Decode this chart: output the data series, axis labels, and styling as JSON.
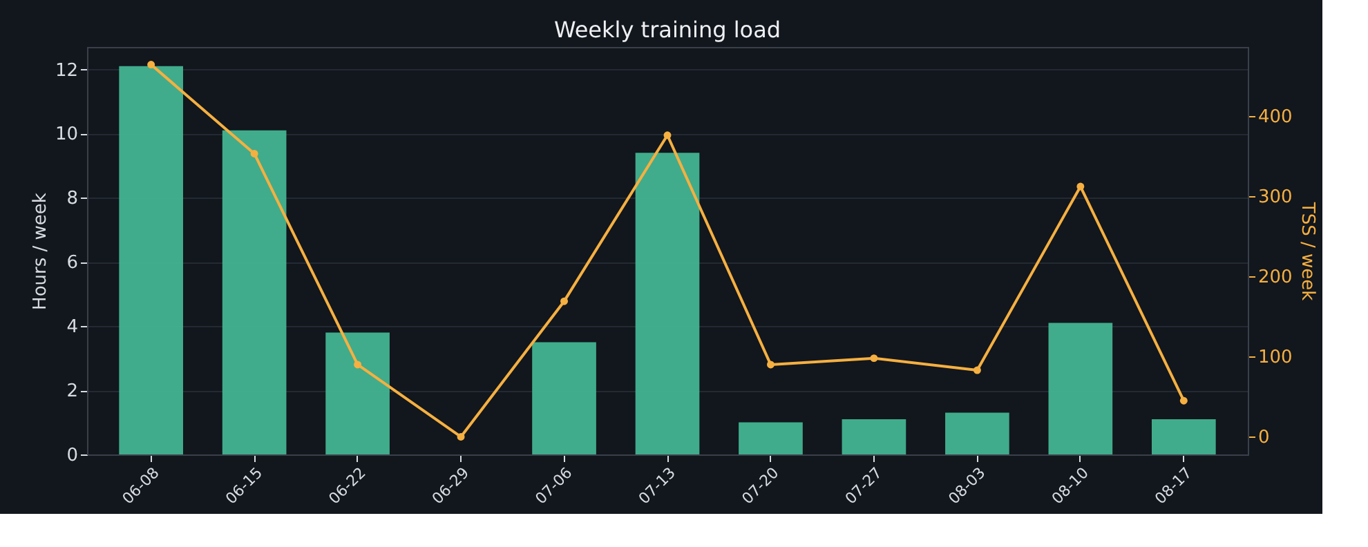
{
  "chart_data": {
    "type": "bar",
    "title": "Weekly training load",
    "ylabel": "Hours / week",
    "y2label": "TSS / week",
    "categories": [
      "06-08",
      "06-15",
      "06-22",
      "06-29",
      "07-06",
      "07-13",
      "07-20",
      "07-27",
      "08-03",
      "08-10",
      "08-17"
    ],
    "series": [
      {
        "color": "#43b491",
        "values": [
          12.1,
          10.1,
          3.8,
          0,
          3.5,
          9.4,
          1.0,
          1.1,
          1.3,
          4.1,
          1.1
        ]
      },
      {
        "type": "line",
        "axis": "y2",
        "color": "#f5b041",
        "marker": "circle",
        "values": [
          464,
          353,
          90,
          0,
          169,
          376,
          90,
          98,
          83,
          312,
          45
        ]
      }
    ],
    "ylim": [
      0,
      12.7
    ],
    "yticks": [
      0,
      2,
      4,
      6,
      8,
      10,
      12
    ],
    "y2lim": [
      -22,
      486
    ],
    "y2ticks": [
      0,
      100,
      200,
      300,
      400
    ],
    "grid": "y"
  }
}
